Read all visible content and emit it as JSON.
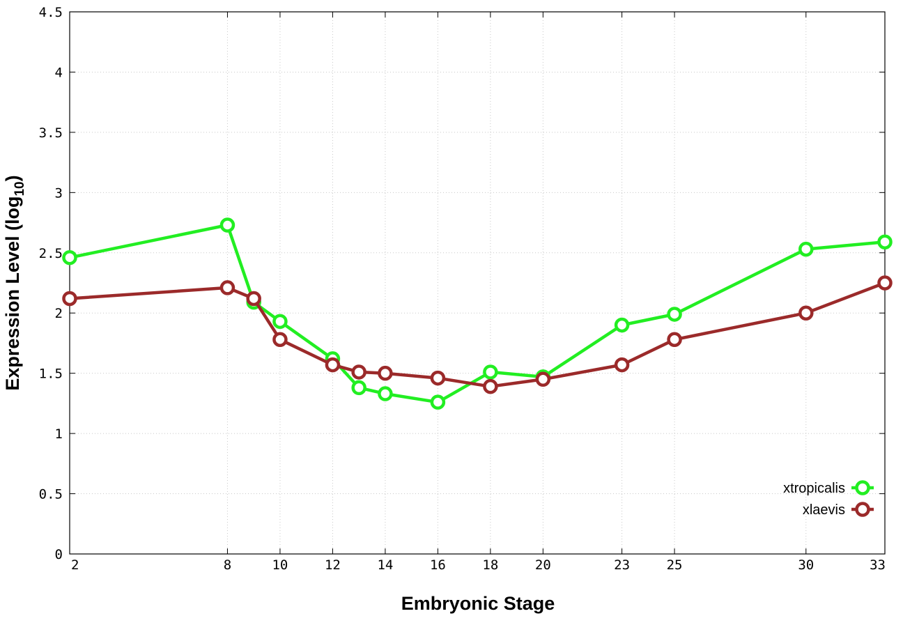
{
  "chart_data": {
    "type": "line",
    "xlabel": "Embryonic Stage",
    "ylabel_main": "Expression Level (log",
    "ylabel_sub": "10",
    "ylabel_close": ")",
    "ylim": [
      0,
      4.5
    ],
    "y_ticks": [
      "0",
      "0.5",
      "1",
      "1.5",
      "2",
      "2.5",
      "3",
      "3.5",
      "4",
      "4.5"
    ],
    "x_ticks": [
      "2",
      "8",
      "10",
      "12",
      "14",
      "16",
      "18",
      "20",
      "23",
      "25",
      "30",
      "33"
    ],
    "grid": true,
    "legend_position": "bottom-right",
    "series": [
      {
        "name": "xtropicalis",
        "color": "#22ee22",
        "marker": "circle",
        "x": [
          2,
          8,
          9,
          10,
          12,
          13,
          14,
          16,
          18,
          20,
          23,
          25,
          30,
          33
        ],
        "y": [
          2.46,
          2.73,
          2.09,
          1.93,
          1.62,
          1.38,
          1.33,
          1.26,
          1.51,
          1.47,
          1.9,
          1.99,
          2.53,
          2.59
        ]
      },
      {
        "name": "xlaevis",
        "color": "#9b2a2a",
        "marker": "circle",
        "x": [
          2,
          8,
          9,
          10,
          12,
          13,
          14,
          16,
          18,
          20,
          23,
          25,
          30,
          33
        ],
        "y": [
          2.12,
          2.21,
          2.12,
          1.78,
          1.57,
          1.51,
          1.5,
          1.46,
          1.39,
          1.45,
          1.57,
          1.78,
          2.0,
          2.25
        ]
      }
    ]
  }
}
